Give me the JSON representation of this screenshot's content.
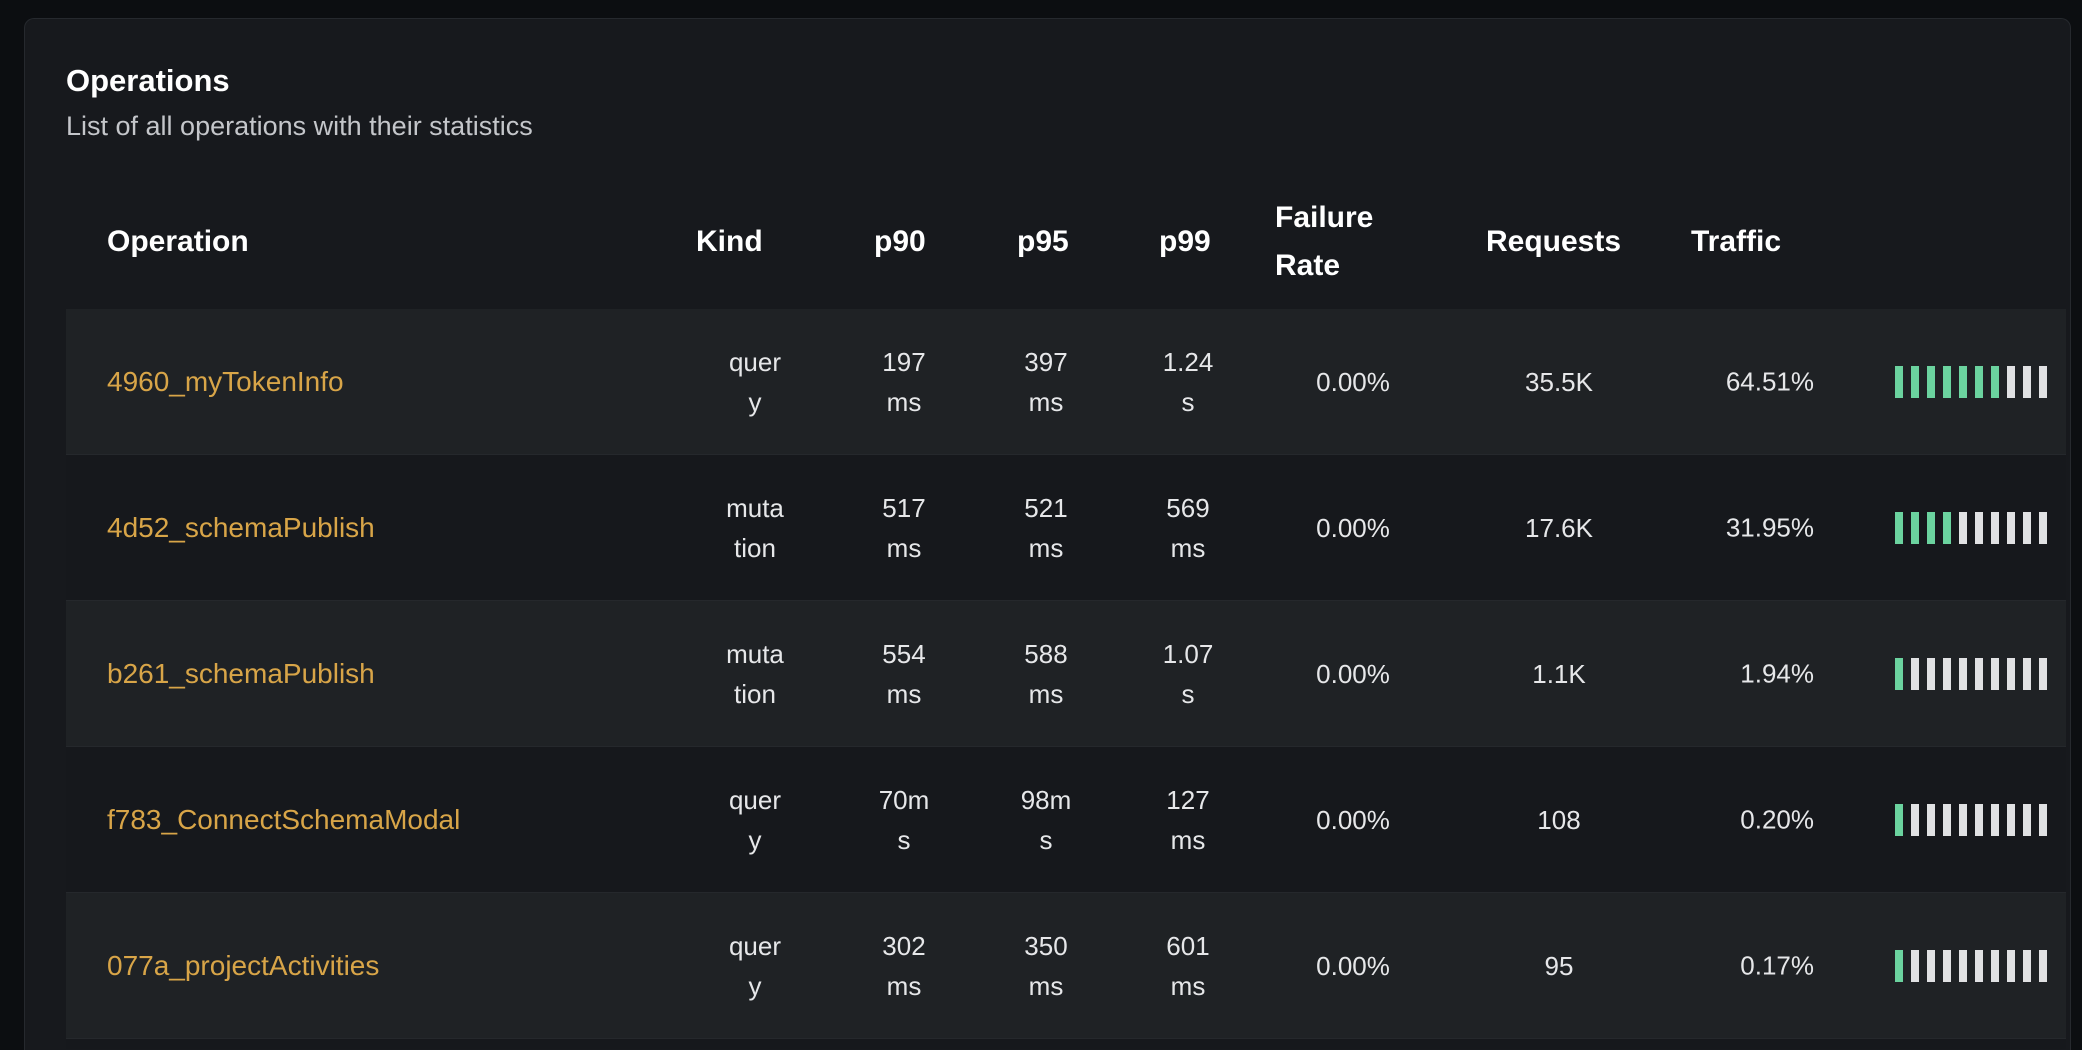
{
  "header": {
    "title": "Operations",
    "subtitle": "List of all operations with their statistics"
  },
  "columns": {
    "operation": "Operation",
    "kind": "Kind",
    "p90": "p90",
    "p95": "p95",
    "p99": "p99",
    "failure_rate": "Failure Rate",
    "requests": "Requests",
    "traffic": "Traffic"
  },
  "colors": {
    "link": "#d8a548",
    "bar_filled": "#6bd39f",
    "bar_empty": "#e0e1e3"
  },
  "rows": [
    {
      "operation": "4960_myTokenInfo",
      "kind": "query",
      "p90": "197 ms",
      "p95": "397 ms",
      "p99": "1.24 s",
      "failure_rate": "0.00%",
      "requests": "35.5K",
      "traffic": "64.51%",
      "traffic_bars_filled": 7
    },
    {
      "operation": "4d52_schemaPublish",
      "kind": "mutation",
      "p90": "517 ms",
      "p95": "521 ms",
      "p99": "569 ms",
      "failure_rate": "0.00%",
      "requests": "17.6K",
      "traffic": "31.95%",
      "traffic_bars_filled": 4
    },
    {
      "operation": "b261_schemaPublish",
      "kind": "mutation",
      "p90": "554 ms",
      "p95": "588 ms",
      "p99": "1.07 s",
      "failure_rate": "0.00%",
      "requests": "1.1K",
      "traffic": "1.94%",
      "traffic_bars_filled": 1
    },
    {
      "operation": "f783_ConnectSchemaModal",
      "kind": "query",
      "p90": "70ms",
      "p95": "98ms",
      "p99": "127 ms",
      "failure_rate": "0.00%",
      "requests": "108",
      "traffic": "0.20%",
      "traffic_bars_filled": 1
    },
    {
      "operation": "077a_projectActivities",
      "kind": "query",
      "p90": "302 ms",
      "p95": "350 ms",
      "p99": "601 ms",
      "failure_rate": "0.00%",
      "requests": "95",
      "traffic": "0.17%",
      "traffic_bars_filled": 1
    }
  ]
}
